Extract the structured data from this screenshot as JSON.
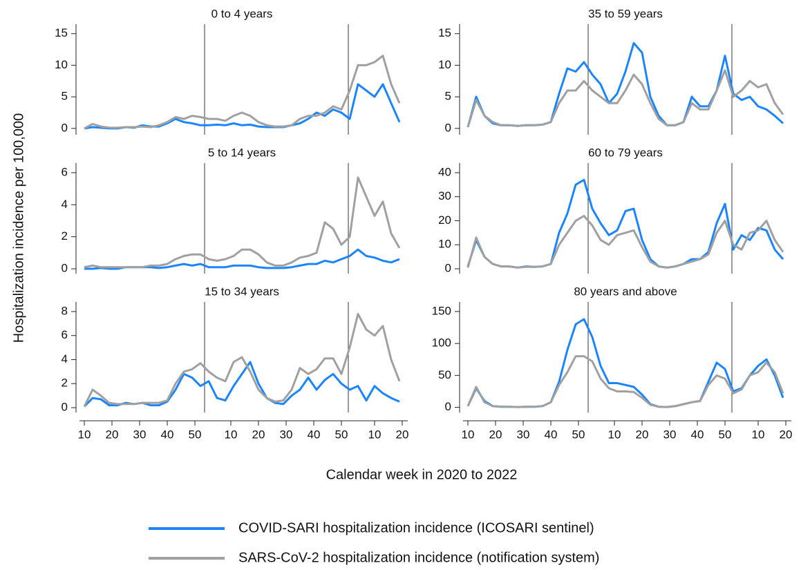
{
  "axis_labels": {
    "x": "Calendar week in 2020 to 2022",
    "y": "Hospitalization incidence per 100,000"
  },
  "legend": [
    {
      "name": "COVID-SARI hospitalization incidence (ICOSARI sentinel)",
      "color": "#1a85ff"
    },
    {
      "name": "SARS-CoV-2 hospitalization incidence (notification system)",
      "color": "#a0a0a0"
    }
  ],
  "x": [
    10,
    13,
    16,
    19,
    22,
    25,
    28,
    31,
    34,
    37,
    40,
    43,
    46,
    49,
    52,
    55,
    58,
    61,
    64,
    67,
    70,
    73,
    76,
    79,
    82,
    85,
    88,
    91,
    94,
    97,
    100,
    103,
    106,
    109,
    112,
    115,
    118,
    121,
    124
  ],
  "year_boundaries": [
    53.5,
    105.5
  ],
  "chart_data": [
    {
      "type": "line",
      "title": "0 to 4 years",
      "xlim": [
        7,
        127
      ],
      "ylim": [
        -1,
        16.5
      ],
      "yticks": [
        0,
        5,
        10,
        15
      ],
      "series": [
        {
          "values": [
            0,
            0.2,
            0.1,
            0,
            0,
            0.2,
            0.1,
            0.5,
            0.3,
            0.3,
            0.8,
            1.5,
            1,
            0.8,
            0.5,
            0.5,
            0.6,
            0.5,
            0.8,
            0.5,
            0.6,
            0.3,
            0.2,
            0.2,
            0.2,
            0.5,
            0.8,
            1.5,
            2.5,
            2,
            3,
            2.5,
            1.5,
            7,
            6,
            5,
            7,
            4,
            1
          ]
        },
        {
          "values": [
            0,
            0.7,
            0.3,
            0.1,
            0.1,
            0.2,
            0.2,
            0.3,
            0.2,
            0.5,
            1,
            1.8,
            1.5,
            2,
            1.8,
            1.5,
            1.5,
            1.2,
            2,
            2.5,
            2,
            1,
            0.5,
            0.3,
            0.3,
            0.5,
            1.5,
            2,
            2,
            2.5,
            3.5,
            3,
            6,
            10,
            10,
            10.5,
            11.5,
            7,
            4
          ]
        }
      ]
    },
    {
      "type": "line",
      "title": "5 to 14 years",
      "xlim": [
        7,
        127
      ],
      "ylim": [
        -0.3,
        6.6
      ],
      "yticks": [
        0,
        2,
        4,
        6
      ],
      "series": [
        {
          "values": [
            0,
            0,
            0.05,
            0,
            0,
            0.1,
            0.1,
            0.1,
            0.1,
            0.05,
            0.1,
            0.2,
            0.3,
            0.2,
            0.3,
            0.1,
            0.1,
            0.1,
            0.2,
            0.2,
            0.2,
            0.1,
            0.05,
            0.05,
            0.05,
            0.1,
            0.2,
            0.3,
            0.3,
            0.5,
            0.4,
            0.6,
            0.8,
            1.2,
            0.8,
            0.7,
            0.5,
            0.4,
            0.6
          ]
        },
        {
          "values": [
            0.1,
            0.2,
            0.1,
            0.1,
            0.1,
            0.1,
            0.1,
            0.1,
            0.2,
            0.2,
            0.3,
            0.6,
            0.8,
            0.9,
            0.9,
            0.6,
            0.5,
            0.6,
            0.8,
            1.2,
            1.2,
            0.9,
            0.4,
            0.2,
            0.2,
            0.4,
            0.7,
            0.8,
            1,
            2.9,
            2.5,
            1.5,
            2,
            5.7,
            4.5,
            3.3,
            4.2,
            2.2,
            1.3
          ]
        }
      ]
    },
    {
      "type": "line",
      "title": "15 to 34 years",
      "xlim": [
        7,
        127
      ],
      "ylim": [
        -0.4,
        8.8
      ],
      "yticks": [
        0,
        2,
        4,
        6,
        8
      ],
      "xticks": [
        10,
        20,
        30,
        40,
        50,
        {
          "value": 63,
          "label": "10"
        },
        {
          "value": 73,
          "label": "20"
        },
        {
          "value": 83,
          "label": "30"
        },
        {
          "value": 93,
          "label": "40"
        },
        {
          "value": 103,
          "label": "50"
        },
        {
          "value": 115,
          "label": "10"
        },
        {
          "value": 125,
          "label": "20"
        }
      ],
      "series": [
        {
          "values": [
            0.1,
            0.8,
            0.7,
            0.2,
            0.2,
            0.4,
            0.3,
            0.4,
            0.2,
            0.2,
            0.5,
            1.5,
            2.8,
            2.5,
            1.8,
            2.2,
            0.8,
            0.6,
            1.8,
            2.8,
            3.8,
            2,
            0.8,
            0.4,
            0.3,
            1,
            1.5,
            2.5,
            1.5,
            2.3,
            2.8,
            2,
            1.5,
            1.8,
            0.6,
            1.8,
            1.2,
            0.8,
            0.5
          ]
        },
        {
          "values": [
            0.1,
            1.5,
            1,
            0.4,
            0.3,
            0.3,
            0.3,
            0.4,
            0.4,
            0.4,
            0.6,
            2,
            3,
            3.2,
            3.7,
            3,
            2.5,
            2.2,
            3.8,
            4.2,
            3,
            1.5,
            0.8,
            0.5,
            0.6,
            1.5,
            3.3,
            2.8,
            3.2,
            4.1,
            4.1,
            2.8,
            5,
            7.8,
            6.5,
            6,
            6.8,
            4,
            2.2
          ]
        }
      ]
    },
    {
      "type": "line",
      "title": "35 to 59 years",
      "xlim": [
        7,
        127
      ],
      "ylim": [
        -1,
        16.5
      ],
      "yticks": [
        0,
        5,
        10,
        15
      ],
      "series": [
        {
          "values": [
            0.2,
            5,
            2,
            0.8,
            0.5,
            0.5,
            0.4,
            0.5,
            0.5,
            0.6,
            1,
            5.5,
            9.5,
            9,
            10.5,
            8.5,
            7,
            4,
            5.5,
            9,
            13.5,
            12,
            5,
            2,
            0.5,
            0.5,
            1,
            5,
            3.5,
            3.5,
            6,
            11.5,
            5.5,
            4.5,
            5,
            3.5,
            3,
            2,
            0.8
          ]
        },
        {
          "values": [
            0.2,
            4.5,
            2,
            1,
            0.5,
            0.5,
            0.4,
            0.5,
            0.5,
            0.6,
            1,
            4,
            6,
            6,
            7.5,
            6,
            5,
            4,
            4,
            6,
            8.5,
            7,
            4,
            1.5,
            0.5,
            0.5,
            1,
            4,
            3,
            3,
            6,
            9.2,
            5,
            6,
            7.5,
            6.5,
            7,
            4,
            2.2
          ]
        }
      ]
    },
    {
      "type": "line",
      "title": "60 to 79 years",
      "xlim": [
        7,
        127
      ],
      "ylim": [
        -2,
        44
      ],
      "yticks": [
        0,
        10,
        20,
        30,
        40
      ],
      "series": [
        {
          "values": [
            1,
            12,
            5,
            2,
            1,
            1,
            0.5,
            1,
            0.8,
            1,
            2,
            15,
            23,
            35,
            37,
            25,
            19,
            14,
            16,
            24,
            25,
            12,
            4,
            1,
            0.5,
            1,
            2,
            4,
            4,
            7,
            19,
            27,
            8,
            14,
            12,
            17,
            16,
            8,
            4
          ]
        },
        {
          "values": [
            0.5,
            13,
            5,
            2,
            1,
            1,
            0.5,
            0.8,
            0.8,
            1,
            2,
            10,
            15,
            20,
            22,
            18,
            12,
            10,
            14,
            15,
            16,
            9,
            3,
            1,
            0.5,
            1,
            2,
            3,
            4,
            6,
            15,
            20,
            10,
            8,
            15,
            16,
            20,
            12,
            7
          ]
        }
      ]
    },
    {
      "type": "line",
      "title": "80 years and above",
      "xlim": [
        7,
        127
      ],
      "ylim": [
        -8,
        165
      ],
      "yticks": [
        0,
        50,
        100,
        150
      ],
      "xticks": [
        10,
        20,
        30,
        40,
        50,
        {
          "value": 63,
          "label": "10"
        },
        {
          "value": 73,
          "label": "20"
        },
        {
          "value": 83,
          "label": "30"
        },
        {
          "value": 93,
          "label": "40"
        },
        {
          "value": 103,
          "label": "50"
        },
        {
          "value": 115,
          "label": "10"
        },
        {
          "value": 125,
          "label": "20"
        }
      ],
      "series": [
        {
          "values": [
            2,
            30,
            10,
            2,
            1,
            1,
            0.5,
            1,
            1,
            2,
            8,
            40,
            90,
            130,
            138,
            110,
            65,
            38,
            38,
            35,
            32,
            20,
            5,
            1,
            0.5,
            2,
            5,
            8,
            10,
            40,
            70,
            60,
            25,
            30,
            50,
            65,
            75,
            50,
            15
          ]
        },
        {
          "values": [
            2,
            32,
            8,
            2,
            1,
            1,
            0.5,
            1,
            1,
            2,
            8,
            35,
            55,
            80,
            80,
            72,
            45,
            30,
            25,
            25,
            24,
            15,
            4,
            1,
            0.5,
            2,
            5,
            8,
            10,
            35,
            50,
            45,
            22,
            28,
            50,
            55,
            70,
            55,
            22
          ]
        }
      ]
    }
  ]
}
